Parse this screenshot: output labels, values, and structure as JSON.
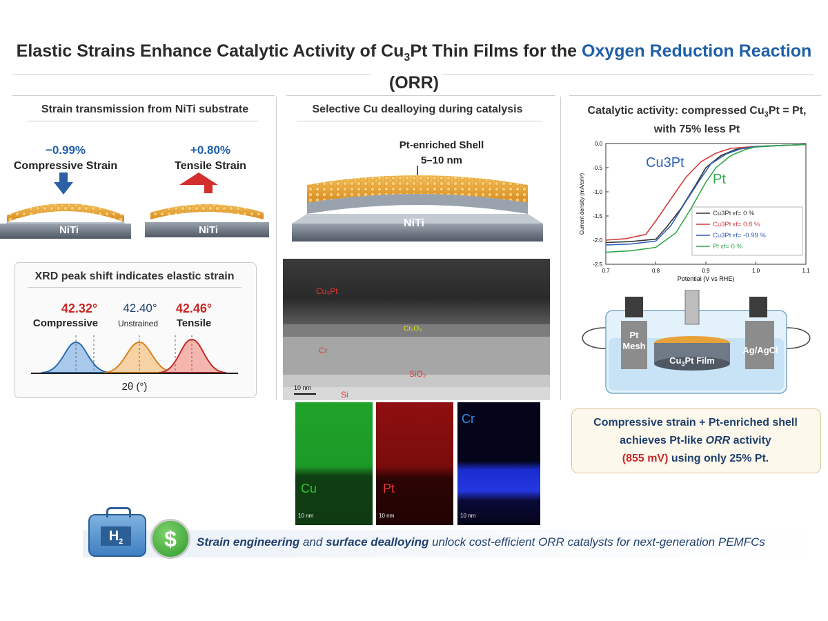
{
  "title": {
    "part1": "Elastic Strains Enhance Catalytic Activity of Cu",
    "sub": "3",
    "part2": "Pt Thin Films for the ",
    "highlight": "Oxygen Reduction Reaction",
    "line2": "(ORR)"
  },
  "left": {
    "heading": "Strain transmission from NiTi substrate",
    "compressive": {
      "value": "−0.99%",
      "label": "Compressive Strain",
      "substrate": "NiTi"
    },
    "tensile": {
      "value": "+0.80%",
      "label": "Tensile Strain",
      "substrate": "NiTi"
    },
    "xrd": {
      "heading": "XRD peak shift indicates elastic strain",
      "peaks": [
        {
          "angle": "42.32°",
          "label": "Compressive"
        },
        {
          "angle": "42.40°",
          "label": "Unstrained"
        },
        {
          "angle": "42.46°",
          "label": "Tensile"
        }
      ],
      "axis": "2θ (°)"
    }
  },
  "middle": {
    "heading": "Selective Cu dealloying during catalysis",
    "shell_label": "Pt-enriched Shell",
    "shell_thickness": "5–10 nm",
    "substrate": "NiTi",
    "tem": {
      "layers": [
        "Cu₃Pt",
        "Cr₂O₃",
        "Cr",
        "SiO₂",
        "Si"
      ],
      "scale": "10 nm"
    },
    "maps": [
      {
        "element": "Cu",
        "scale": "10 nm"
      },
      {
        "element": "Pt",
        "scale": "10 nm"
      },
      {
        "element": "Cr",
        "scale": "10 nm"
      }
    ]
  },
  "right": {
    "heading_line1a": "Catalytic activity: compressed Cu",
    "heading_sub": "3",
    "heading_line1b": "Pt = Pt,",
    "heading_line2": "with 75% less Pt",
    "cell": {
      "left": "Pt Mesh",
      "center_a": "Cu",
      "center_sub": "3",
      "center_b": "Pt Film",
      "right": "Ag/AgCl"
    },
    "callout": {
      "line1": "Compressive strain + Pt-enriched shell",
      "line2a": "achieves Pt-like ",
      "line2b": "ORR",
      "line2c": " activity",
      "line3a": "(855 mV)",
      "line3b": " using only 25% Pt."
    }
  },
  "footer": {
    "h2": "H",
    "h2sub": "2",
    "dollar": "$",
    "t1": "Strain engineering",
    "t2": " and ",
    "t3": "surface dealloying",
    "t4": " unlock cost-efficient ORR catalysts for next-generation PEMFCs"
  },
  "chart_data": {
    "type": "line",
    "xlabel": "Potential (V vs RHE)",
    "ylabel": "Current density (mA/cm²)",
    "xlim": [
      0.7,
      1.1
    ],
    "ylim": [
      -2.5,
      0.0
    ],
    "xticks": [
      "0.7",
      "0.8",
      "0.9",
      "1.0",
      "1.1"
    ],
    "yticks": [
      "0.0",
      "-0.5",
      "-1.0",
      "-1.5",
      "-2.0",
      "-2.5"
    ],
    "annotations": [
      "Cu3Pt",
      "Pt"
    ],
    "legend_position": "right",
    "series": [
      {
        "name": "Cu3Pt εf= 0 %",
        "color": "#333333",
        "x": [
          0.7,
          0.75,
          0.8,
          0.82,
          0.85,
          0.88,
          0.9,
          0.93,
          0.96,
          1.0,
          1.05,
          1.1
        ],
        "y": [
          -2.05,
          -2.03,
          -1.98,
          -1.75,
          -1.35,
          -0.85,
          -0.5,
          -0.25,
          -0.12,
          -0.07,
          -0.04,
          -0.02
        ]
      },
      {
        "name": "Cu3Pt εf= 0.8 %",
        "color": "#d23a3a",
        "x": [
          0.7,
          0.74,
          0.78,
          0.8,
          0.83,
          0.86,
          0.89,
          0.92,
          0.95,
          1.0,
          1.05,
          1.1
        ],
        "y": [
          -2.0,
          -1.97,
          -1.88,
          -1.6,
          -1.15,
          -0.7,
          -0.38,
          -0.2,
          -0.1,
          -0.06,
          -0.04,
          -0.02
        ]
      },
      {
        "name": "Cu3Pt εf= -0.99 %",
        "color": "#2f5fb8",
        "x": [
          0.7,
          0.75,
          0.8,
          0.83,
          0.86,
          0.89,
          0.91,
          0.94,
          0.97,
          1.0,
          1.05,
          1.1
        ],
        "y": [
          -2.1,
          -2.08,
          -2.02,
          -1.7,
          -1.2,
          -0.72,
          -0.42,
          -0.22,
          -0.11,
          -0.06,
          -0.04,
          -0.02
        ]
      },
      {
        "name": "Pt εf= 0 %",
        "color": "#2ea84a",
        "x": [
          0.7,
          0.75,
          0.8,
          0.84,
          0.87,
          0.9,
          0.92,
          0.95,
          0.98,
          1.0,
          1.05,
          1.1
        ],
        "y": [
          -2.25,
          -2.22,
          -2.15,
          -1.85,
          -1.35,
          -0.8,
          -0.5,
          -0.25,
          -0.12,
          -0.07,
          -0.04,
          -0.02
        ]
      }
    ]
  },
  "colors": {
    "accent_blue": "#1f5fa8",
    "accent_red": "#c62828",
    "gold": "#e8a23a",
    "steel": "#6f7a86"
  }
}
